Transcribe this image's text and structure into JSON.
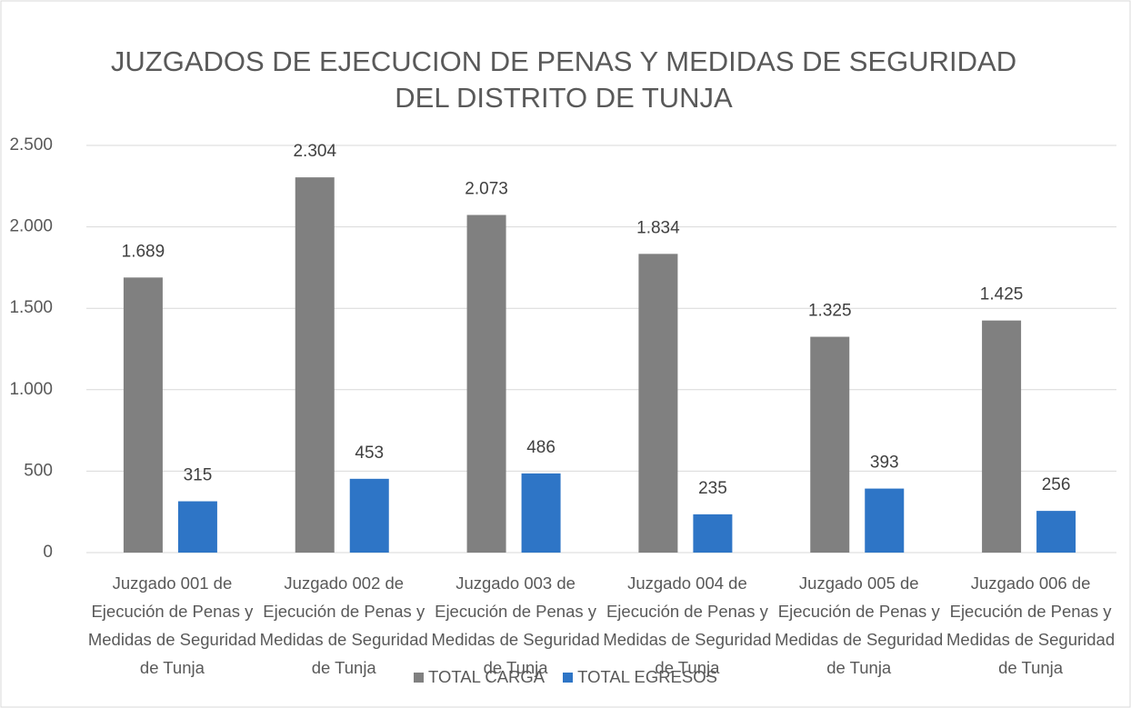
{
  "chart_data": {
    "type": "bar",
    "title": "JUZGADOS DE EJECUCION DE PENAS Y MEDIDAS DE SEGURIDAD DEL DISTRITO DE TUNJA",
    "categories": [
      "Juzgado 001 de Ejecución de Penas y Medidas de Seguridad de Tunja",
      "Juzgado 002 de Ejecución de Penas y Medidas de Seguridad de Tunja",
      "Juzgado 003 de Ejecución de Penas y Medidas de Seguridad de Tunja",
      "Juzgado 004 de Ejecución de Penas y Medidas de Seguridad de Tunja",
      "Juzgado 005 de Ejecución de Penas y Medidas de Seguridad de Tunja",
      "Juzgado 006 de Ejecución de Penas y Medidas de Seguridad de Tunja"
    ],
    "series": [
      {
        "name": "TOTAL CARGA",
        "color": "#808080",
        "values": [
          1689,
          2304,
          2073,
          1834,
          1325,
          1425
        ],
        "value_labels": [
          "1.689",
          "2.304",
          "2.073",
          "1.834",
          "1.325",
          "1.425"
        ]
      },
      {
        "name": "TOTAL EGRESOS",
        "color": "#2e75c6",
        "values": [
          315,
          453,
          486,
          235,
          393,
          256
        ],
        "value_labels": [
          "315",
          "453",
          "486",
          "235",
          "393",
          "256"
        ]
      }
    ],
    "ylim": [
      0,
      2500
    ],
    "yticks": [
      0,
      500,
      {
        "value": 1000,
        "label": "1.000"
      },
      {
        "value": 1500,
        "label": "1.500"
      },
      {
        "value": 2000,
        "label": "2.000"
      },
      {
        "value": 2500,
        "label": "2.500"
      }
    ],
    "grid": true,
    "legend": "bottom"
  }
}
